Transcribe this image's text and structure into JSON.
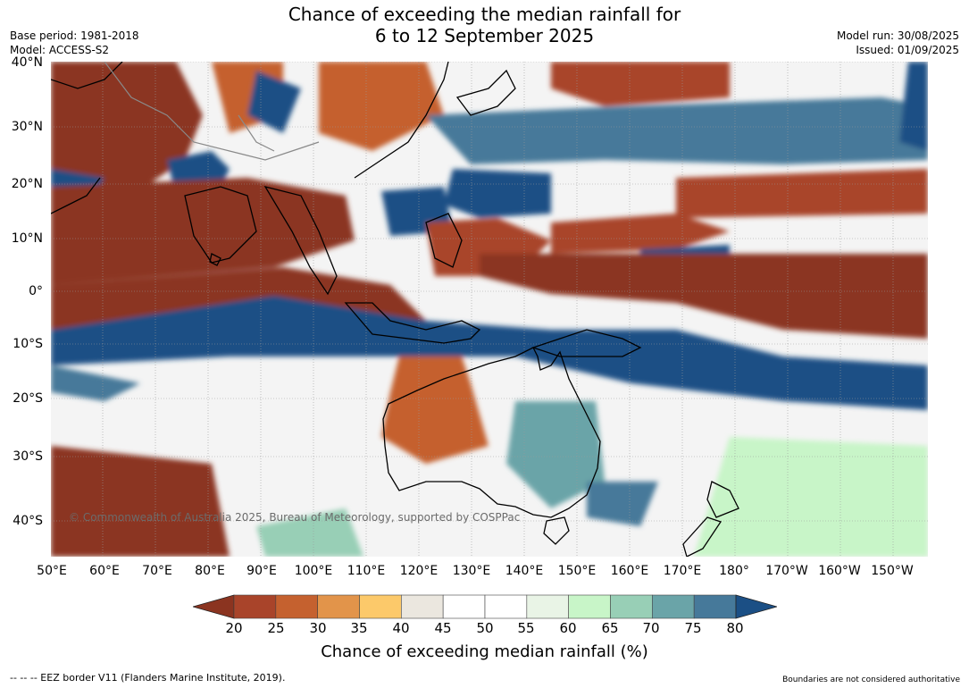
{
  "header": {
    "title_line1": "Chance of exceeding the median rainfall for",
    "title_line2": "6 to 12 September 2025",
    "base_period": "Base period: 1981-2018",
    "model": "Model: ACCESS-S2",
    "model_run": "Model run: 30/08/2025",
    "issued": "Issued: 01/09/2025"
  },
  "map": {
    "lat_labels": [
      "40°N",
      "30°N",
      "20°N",
      "10°N",
      "0°",
      "10°S",
      "20°S",
      "30°S",
      "40°S"
    ],
    "lon_labels": [
      "50°E",
      "60°E",
      "70°E",
      "80°E",
      "90°E",
      "100°E",
      "110°E",
      "120°E",
      "130°E",
      "140°E",
      "150°E",
      "160°E",
      "170°E",
      "180°",
      "170°W",
      "160°W",
      "150°W"
    ],
    "copyright": "© Commonwealth of Australia 2025, Bureau of Meteorology, supported by COSPPac"
  },
  "legend": {
    "ticks": [
      "20",
      "25",
      "30",
      "35",
      "40",
      "45",
      "50",
      "55",
      "60",
      "65",
      "70",
      "75",
      "80"
    ],
    "colors": [
      "#8b3420",
      "#a9442a",
      "#c5612f",
      "#e2944a",
      "#fcc96a",
      "#ebe7df",
      "#ffffff",
      "#ffffff",
      "#e9f4e6",
      "#c8f5c8",
      "#98cfb6",
      "#6aa4a8",
      "#46799a",
      "#1b4f85"
    ],
    "label": "Chance of exceeding median rainfall (%)"
  },
  "footer": {
    "eez": "--  --  -- EEZ border V11 (Flanders Marine Institute, 2019).",
    "disclaimer": "Boundaries are not considered authoritative"
  }
}
